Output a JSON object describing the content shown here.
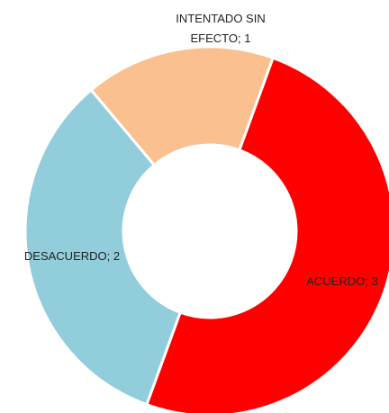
{
  "chart_data": {
    "type": "donut",
    "values": [
      3,
      2,
      1
    ],
    "value_labels": [
      "ACUERDO; 3",
      "DESACUERDO; 2",
      "INTENTADO SIN EFECTO; 1"
    ],
    "colors": [
      "#ff0000",
      "#92cddc",
      "#fac090"
    ]
  }
}
